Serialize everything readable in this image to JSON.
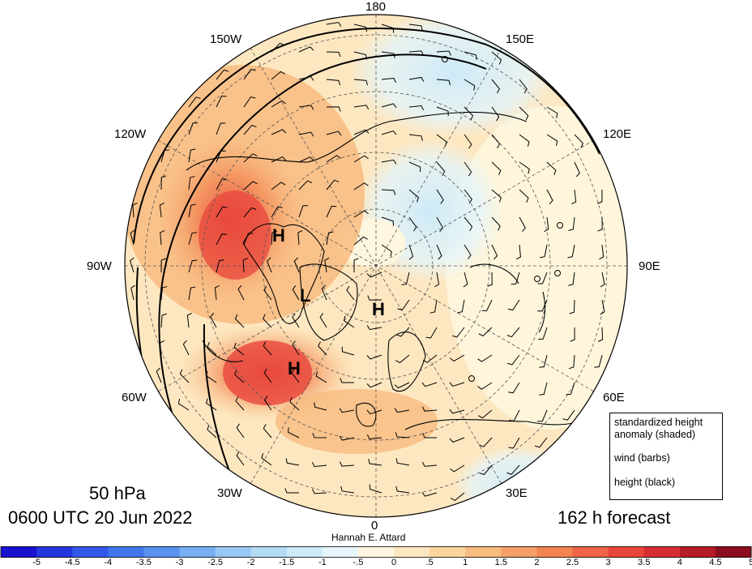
{
  "map": {
    "meridian_labels": [
      "180",
      "150E",
      "120E",
      "90E",
      "60E",
      "30E",
      "0",
      "30W",
      "60W",
      "90W",
      "120W",
      "150W"
    ],
    "pressure_level": "50 hPa",
    "valid_time": "0600 UTC 20 Jun 2022",
    "forecast_hour": "162 h forecast",
    "credit": "Hannah E. Attard",
    "pressure_centers": [
      "H",
      "H",
      "H",
      "L"
    ]
  },
  "legend": {
    "shaded": "standardized height anomaly (shaded)",
    "barbs": "wind (barbs)",
    "contours": "height (black)"
  },
  "colorbar": {
    "ticks": [
      "-5",
      "-4.5",
      "-4",
      "-3.5",
      "-3",
      "-2.5",
      "-2",
      "-1.5",
      "-1",
      "-.5",
      "0",
      ".5",
      "1",
      "1.5",
      "2",
      "2.5",
      "3",
      "3.5",
      "4",
      "4.5",
      "5"
    ],
    "colors": [
      "#1a10d0",
      "#2436e0",
      "#3258ea",
      "#4276ee",
      "#5a92f0",
      "#78aef2",
      "#98c8f4",
      "#b4dcf6",
      "#cdeaf8",
      "#e4f5fb",
      "#fef6de",
      "#fde7c0",
      "#fbd49e",
      "#f8bb80",
      "#f5a066",
      "#f28552",
      "#ee6646",
      "#e8463c",
      "#d62e30",
      "#b61c26",
      "#8c0e1e"
    ]
  }
}
